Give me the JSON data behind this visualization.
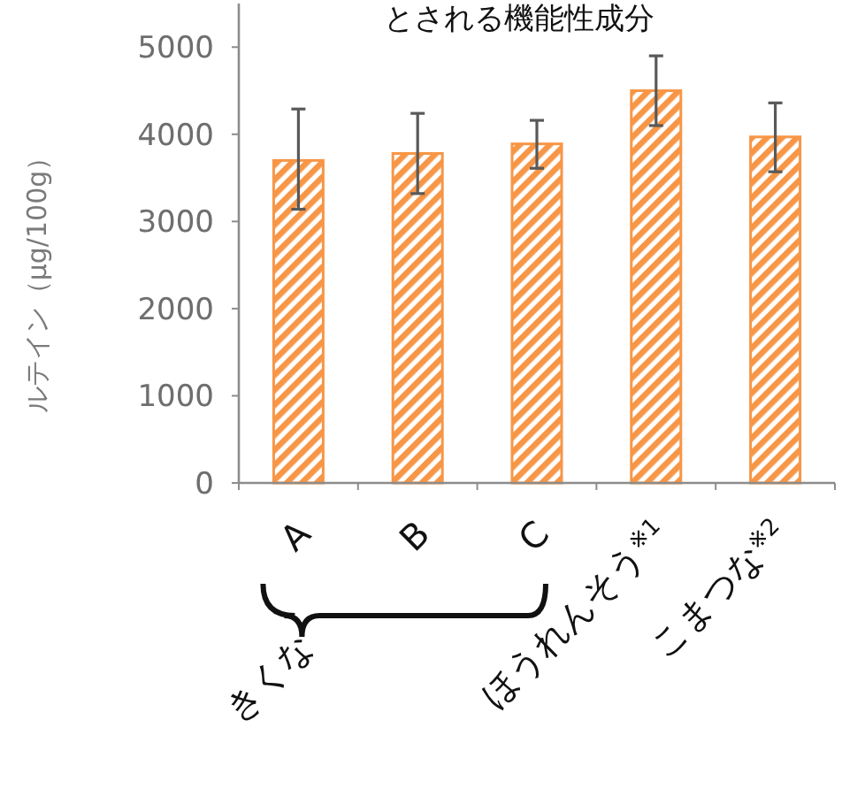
{
  "chart_data": {
    "type": "bar",
    "title": "とされる機能性成分",
    "ylabel": "ルテイン（μg/100g）",
    "categories": [
      "A",
      "B",
      "C",
      "ほうれんそう$^{※1}$",
      "こまつな$^{※2}$"
    ],
    "values": [
      3700,
      3780,
      3890,
      4500,
      3970
    ],
    "errors": [
      [
        3140,
        4290
      ],
      [
        3320,
        4240
      ],
      [
        3610,
        4160
      ],
      [
        4100,
        4900
      ],
      [
        3570,
        4360
      ]
    ],
    "color": "#f79646",
    "annotations": [
      "きくな"
    ],
    "ylim": [
      0,
      5500
    ],
    "yticks": [
      0,
      1000,
      2000,
      3000,
      4000,
      5000
    ],
    "grid": false
  }
}
